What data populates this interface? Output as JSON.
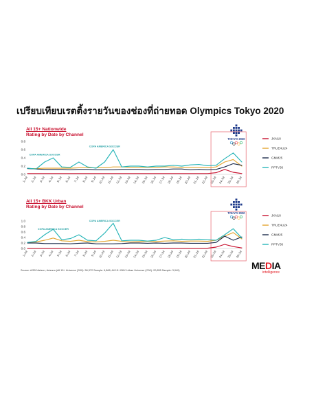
{
  "page_title": "เปรียบเทียบเรตติ้งรายวันของช่องที่ถ่ายทอด Olympics Tokyo 2020",
  "source": "Source: AGB Nielsen, Arianna (All 15+ Universe ('000): 56,372 Sample: 6,868; All 15+ BKK Urban Universe ('000): 20,855 Sample: 3,940)",
  "logo": {
    "word_start": "ME",
    "word_accent": "D",
    "word_end": "IA",
    "sub": "intelligence"
  },
  "emblem": {
    "label": "TOKYO 2020"
  },
  "colors": {
    "JKN18": "#c8102e",
    "TRUE4U24": "#e3a530",
    "GMM25": "#1b2b4b",
    "PPTV36": "#27b5b8",
    "highlight": "#e8727a"
  },
  "chart_data": [
    {
      "type": "line",
      "subtitle_line1": "All 15+ Nationwide",
      "subtitle_line2": "Rating by Date by Channel",
      "categories": [
        "1-Jul",
        "2-Jul",
        "3-Jul",
        "4-Jul",
        "5-Jul",
        "6-Jul",
        "7-Jul",
        "8-Jul",
        "9-Jul",
        "10-Jul",
        "11-Jul",
        "12-Jul",
        "13-Jul",
        "14-Jul",
        "15-Jul",
        "16-Jul",
        "17-Jul",
        "18-Jul",
        "19-Jul",
        "20-Jul",
        "21-Jul",
        "22-Jul",
        "23-Jul",
        "24-Jul",
        "25-Jul",
        "26-Jul"
      ],
      "yticks": [
        "0.0",
        "0.2",
        "0.4",
        "0.6",
        "0.8"
      ],
      "ylim": [
        0,
        0.8
      ],
      "grid": false,
      "legend_position": "right",
      "highlight_range": [
        "23-Jul",
        "26-Jul"
      ],
      "annotations": [
        {
          "text": "COPA AMERICA SOCCER",
          "x": "3-Jul",
          "y": 0.46
        },
        {
          "text": "COPA AMERICA SOCCER",
          "x": "10-Jul",
          "y": 0.66
        }
      ],
      "series": [
        {
          "name": "JKN18",
          "values": [
            0.02,
            0.02,
            0.02,
            0.02,
            0.02,
            0.02,
            0.02,
            0.02,
            0.02,
            0.02,
            0.02,
            0.02,
            0.02,
            0.02,
            0.02,
            0.02,
            0.02,
            0.02,
            0.02,
            0.02,
            0.02,
            0.02,
            0.04,
            0.12,
            0.05,
            0.02
          ]
        },
        {
          "name": "TRUE4U24",
          "values": [
            0.14,
            0.14,
            0.15,
            0.15,
            0.15,
            0.15,
            0.16,
            0.16,
            0.16,
            0.16,
            0.18,
            0.18,
            0.17,
            0.17,
            0.17,
            0.17,
            0.18,
            0.18,
            0.17,
            0.17,
            0.17,
            0.16,
            0.18,
            0.3,
            0.36,
            0.2
          ]
        },
        {
          "name": "GMM25",
          "values": [
            0.14,
            0.13,
            0.12,
            0.12,
            0.12,
            0.11,
            0.12,
            0.12,
            0.11,
            0.11,
            0.11,
            0.12,
            0.12,
            0.12,
            0.11,
            0.12,
            0.12,
            0.13,
            0.13,
            0.11,
            0.12,
            0.11,
            0.12,
            0.18,
            0.26,
            0.22
          ]
        },
        {
          "name": "PPTV36",
          "values": [
            0.15,
            0.13,
            0.3,
            0.4,
            0.18,
            0.17,
            0.3,
            0.18,
            0.15,
            0.3,
            0.6,
            0.18,
            0.2,
            0.2,
            0.18,
            0.2,
            0.2,
            0.22,
            0.2,
            0.23,
            0.24,
            0.21,
            0.22,
            0.38,
            0.52,
            0.3
          ]
        }
      ]
    },
    {
      "type": "line",
      "subtitle_line1": "All 15+ BKK Urban",
      "subtitle_line2": "Rating by Date by Channel",
      "categories": [
        "1-Jul",
        "2-Jul",
        "3-Jul",
        "4-Jul",
        "5-Jul",
        "6-Jul",
        "7-Jul",
        "8-Jul",
        "9-Jul",
        "10-Jul",
        "11-Jul",
        "12-Jul",
        "13-Jul",
        "14-Jul",
        "15-Jul",
        "16-Jul",
        "17-Jul",
        "18-Jul",
        "19-Jul",
        "20-Jul",
        "21-Jul",
        "22-Jul",
        "23-Jul",
        "24-Jul",
        "25-Jul",
        "26-Jul"
      ],
      "yticks": [
        "0.0",
        "0.2",
        "0.4",
        "0.6",
        "0.8",
        "1.0"
      ],
      "ylim": [
        0,
        1.0
      ],
      "grid": false,
      "legend_position": "right",
      "highlight_range": [
        "23-Jul",
        "26-Jul"
      ],
      "annotations": [
        {
          "text": "COPA AMERICA SOCCER",
          "x": "4-Jul",
          "y": 0.67
        },
        {
          "text": "COPA AMERICA SOCCER",
          "x": "10-Jul",
          "y": 0.97
        }
      ],
      "series": [
        {
          "name": "JKN18",
          "values": [
            0.01,
            0.01,
            0.01,
            0.01,
            0.01,
            0.01,
            0.01,
            0.01,
            0.01,
            0.01,
            0.01,
            0.01,
            0.01,
            0.01,
            0.01,
            0.01,
            0.01,
            0.01,
            0.01,
            0.01,
            0.01,
            0.01,
            0.05,
            0.15,
            0.07,
            0.02
          ]
        },
        {
          "name": "TRUE4U24",
          "values": [
            0.22,
            0.24,
            0.3,
            0.38,
            0.28,
            0.26,
            0.3,
            0.25,
            0.24,
            0.26,
            0.3,
            0.26,
            0.24,
            0.25,
            0.26,
            0.25,
            0.27,
            0.28,
            0.26,
            0.27,
            0.27,
            0.26,
            0.3,
            0.45,
            0.58,
            0.35
          ]
        },
        {
          "name": "GMM25",
          "values": [
            0.2,
            0.2,
            0.18,
            0.18,
            0.18,
            0.17,
            0.19,
            0.2,
            0.17,
            0.17,
            0.17,
            0.18,
            0.2,
            0.2,
            0.19,
            0.2,
            0.19,
            0.2,
            0.2,
            0.19,
            0.19,
            0.19,
            0.22,
            0.45,
            0.3,
            0.42
          ]
        },
        {
          "name": "PPTV36",
          "values": [
            0.22,
            0.26,
            0.5,
            0.7,
            0.32,
            0.36,
            0.5,
            0.3,
            0.28,
            0.56,
            0.92,
            0.28,
            0.3,
            0.3,
            0.27,
            0.3,
            0.4,
            0.32,
            0.34,
            0.32,
            0.34,
            0.32,
            0.3,
            0.5,
            0.72,
            0.38
          ]
        }
      ]
    }
  ]
}
